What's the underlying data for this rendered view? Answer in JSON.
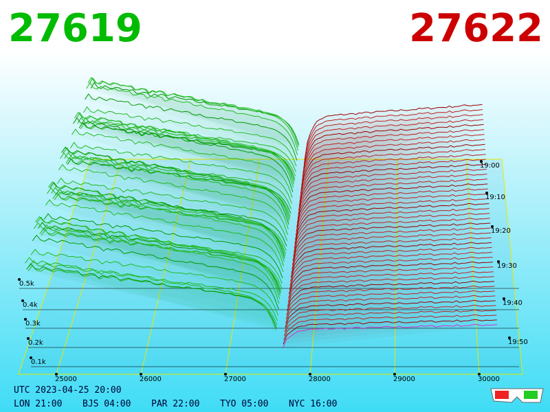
{
  "header": {
    "bid": "27619",
    "ask": "27622"
  },
  "price_axis": [
    "25000",
    "26000",
    "27000",
    "28000",
    "29000",
    "30000"
  ],
  "depth_axis": [
    "0.5k",
    "0.4k",
    "0.3k",
    "0.2k",
    "0.1k"
  ],
  "time_axis": [
    "19:00",
    "19:10",
    "19:20",
    "19:30",
    "19:40",
    "19:50"
  ],
  "footer": {
    "utc": "UTC 2023-04-25 20:00",
    "cities": [
      "LON 21:00",
      "BJS 04:00",
      "PAR 22:00",
      "TYO 05:00",
      "NYC 16:00"
    ]
  }
}
